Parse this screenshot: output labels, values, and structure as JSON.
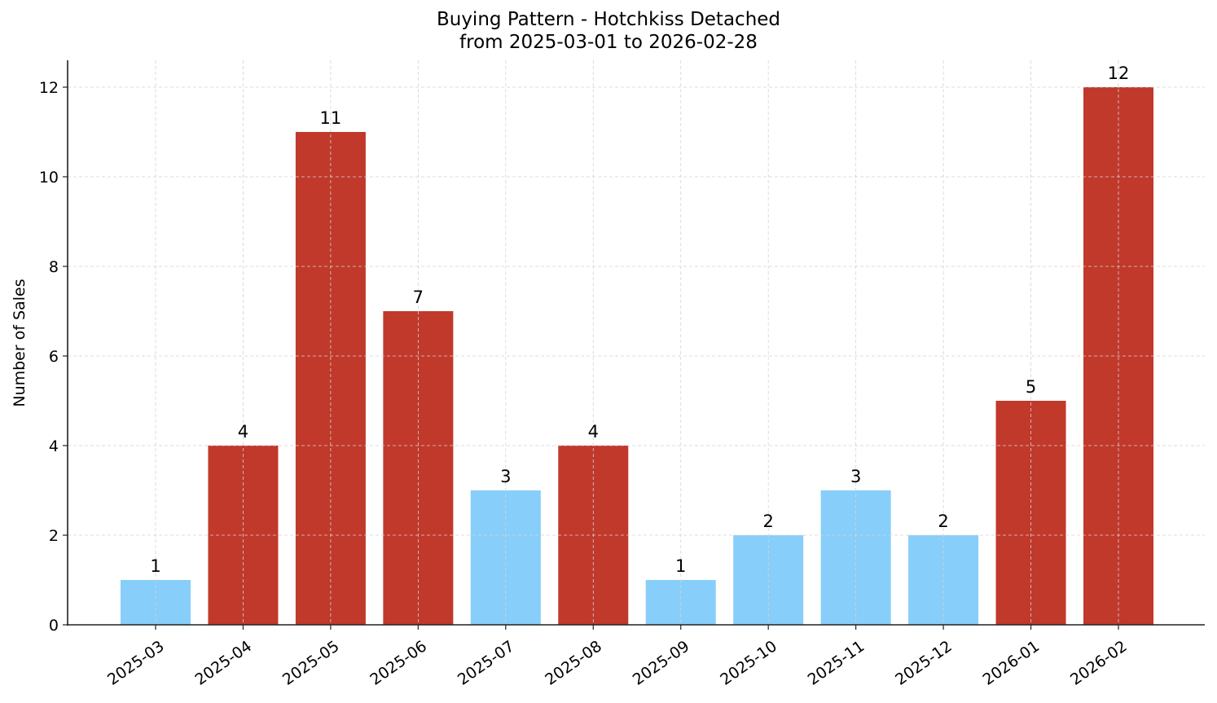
{
  "chart_data": {
    "type": "bar",
    "title": "Buying Pattern - Hotchkiss Detached",
    "subtitle": "from 2025-03-01 to 2026-02-28",
    "xlabel": "",
    "ylabel": "Number of Sales",
    "ylim": [
      0,
      12.6
    ],
    "yticks": [
      0,
      2,
      4,
      6,
      8,
      10,
      12
    ],
    "grid": true,
    "legend": null,
    "categories": [
      "2025-03",
      "2025-04",
      "2025-05",
      "2025-06",
      "2025-07",
      "2025-08",
      "2025-09",
      "2025-10",
      "2025-11",
      "2025-12",
      "2026-01",
      "2026-02"
    ],
    "values": [
      1,
      4,
      11,
      7,
      3,
      4,
      1,
      2,
      3,
      2,
      5,
      12
    ],
    "bar_colors": [
      "#87CEFA",
      "#C0392B",
      "#C0392B",
      "#C0392B",
      "#87CEFA",
      "#C0392B",
      "#87CEFA",
      "#87CEFA",
      "#87CEFA",
      "#87CEFA",
      "#C0392B",
      "#C0392B"
    ],
    "data_labels": [
      "1",
      "4",
      "11",
      "7",
      "3",
      "4",
      "1",
      "2",
      "3",
      "2",
      "5",
      "12"
    ]
  },
  "colors": {
    "high": "#C0392B",
    "low": "#87CEFA",
    "grid": "#d3d3d3",
    "axis": "#222222"
  }
}
